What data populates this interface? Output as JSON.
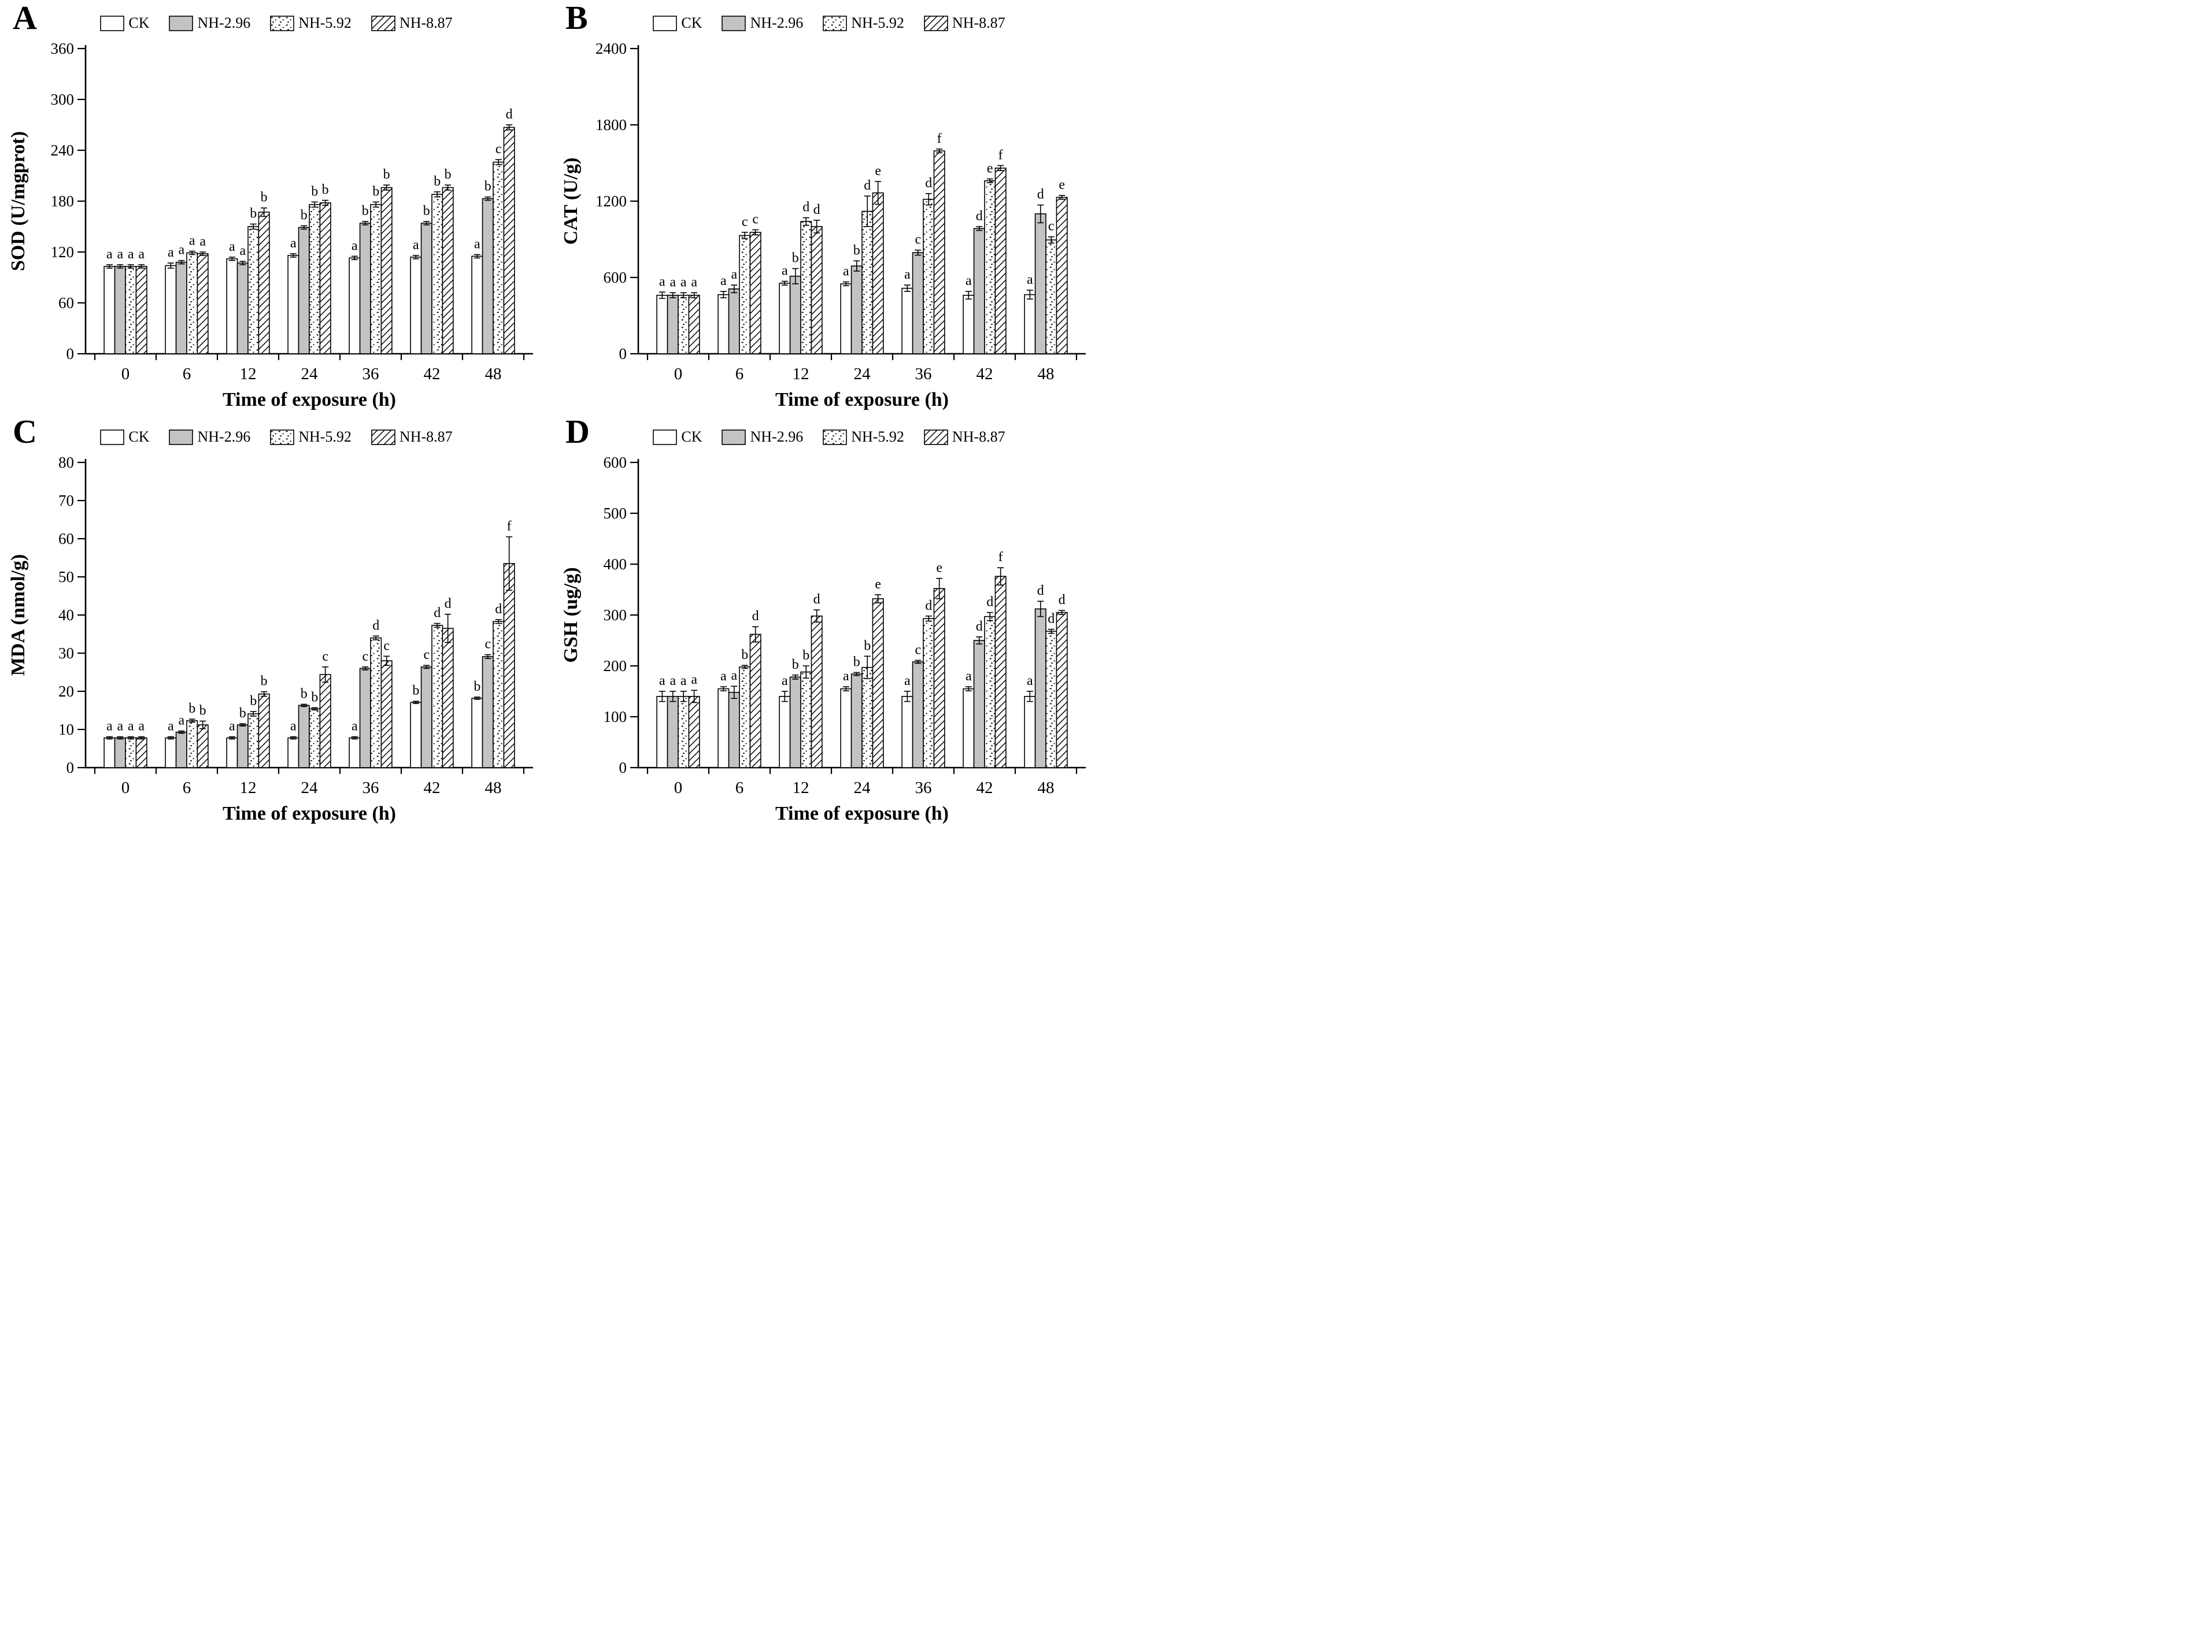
{
  "figure_title": "",
  "colors": {
    "ink": "#000000",
    "bar_gray": "#c3c3c3",
    "background": "#ffffff"
  },
  "chart_data": [
    {
      "panel_label": "A",
      "type": "bar",
      "title": "",
      "xlabel": "Time of exposure (h)",
      "ylabel": "SOD (U/mgprot)",
      "ylim": [
        0,
        360
      ],
      "ytick_step": 60,
      "grid": false,
      "legend_position": "top",
      "categories": [
        "0",
        "6",
        "12",
        "24",
        "36",
        "42",
        "48"
      ],
      "series": [
        {
          "name": "CK",
          "pattern": "white",
          "values": [
            103,
            104,
            112,
            116,
            113,
            114,
            115
          ],
          "errors": [
            2,
            3,
            2,
            2,
            2,
            2,
            2
          ],
          "letters": [
            "a",
            "a",
            "a",
            "a",
            "a",
            "a",
            "a"
          ]
        },
        {
          "name": "NH-2.96",
          "pattern": "gray",
          "values": [
            103,
            108,
            107,
            149,
            154,
            154,
            183
          ],
          "errors": [
            2,
            2,
            2,
            2,
            2,
            2,
            2
          ],
          "letters": [
            "a",
            "a",
            "a",
            "b",
            "b",
            "b",
            "b"
          ]
        },
        {
          "name": "NH-5.92",
          "pattern": "dots",
          "values": [
            103,
            119,
            150,
            176,
            176,
            188,
            226
          ],
          "errors": [
            2,
            2,
            3,
            3,
            3,
            3,
            3
          ],
          "letters": [
            "a",
            "a",
            "b",
            "b",
            "b",
            "b",
            "c"
          ]
        },
        {
          "name": "NH-8.87",
          "pattern": "hatch",
          "values": [
            103,
            118,
            167,
            178,
            196,
            196,
            267
          ],
          "errors": [
            2,
            2,
            5,
            3,
            3,
            3,
            3
          ],
          "letters": [
            "a",
            "a",
            "b",
            "b",
            "b",
            "b",
            "d"
          ]
        }
      ]
    },
    {
      "panel_label": "B",
      "type": "bar",
      "title": "",
      "xlabel": "Time of exposure (h)",
      "ylabel": "CAT (U/g)",
      "ylim": [
        0,
        2400
      ],
      "ytick_step": 600,
      "grid": false,
      "legend_position": "top",
      "categories": [
        "0",
        "6",
        "12",
        "24",
        "36",
        "42",
        "48"
      ],
      "series": [
        {
          "name": "CK",
          "pattern": "white",
          "values": [
            460,
            465,
            555,
            550,
            515,
            460,
            465
          ],
          "errors": [
            25,
            25,
            15,
            15,
            25,
            30,
            35
          ],
          "letters": [
            "a",
            "a",
            "a",
            "a",
            "a",
            "a",
            "a"
          ]
        },
        {
          "name": "NH-2.96",
          "pattern": "gray",
          "values": [
            460,
            510,
            610,
            690,
            795,
            985,
            1100
          ],
          "errors": [
            20,
            30,
            60,
            40,
            20,
            15,
            70
          ],
          "letters": [
            "a",
            "a",
            "b",
            "b",
            "c",
            "d",
            "d"
          ]
        },
        {
          "name": "NH-5.92",
          "pattern": "dots",
          "values": [
            460,
            930,
            1040,
            1120,
            1215,
            1360,
            895
          ],
          "errors": [
            20,
            25,
            30,
            120,
            45,
            15,
            25
          ],
          "letters": [
            "a",
            "c",
            "d",
            "d",
            "d",
            "e",
            "c"
          ]
        },
        {
          "name": "NH-8.87",
          "pattern": "hatch",
          "values": [
            460,
            955,
            1000,
            1265,
            1595,
            1460,
            1230
          ],
          "errors": [
            20,
            20,
            50,
            90,
            15,
            20,
            15
          ],
          "letters": [
            "a",
            "c",
            "d",
            "e",
            "f",
            "f",
            "e"
          ]
        }
      ]
    },
    {
      "panel_label": "C",
      "type": "bar",
      "title": "",
      "xlabel": "Time of exposure (h)",
      "ylabel": "MDA (nmol/g)",
      "ylim": [
        0,
        80
      ],
      "ytick_step": 10,
      "grid": false,
      "legend_position": "top",
      "categories": [
        "0",
        "6",
        "12",
        "24",
        "36",
        "42",
        "48"
      ],
      "series": [
        {
          "name": "CK",
          "pattern": "white",
          "values": [
            7.8,
            7.8,
            7.8,
            7.8,
            7.8,
            17.1,
            18.2
          ],
          "errors": [
            0.3,
            0.3,
            0.3,
            0.3,
            0.3,
            0.3,
            0.3
          ],
          "letters": [
            "a",
            "a",
            "a",
            "a",
            "a",
            "b",
            "b"
          ]
        },
        {
          "name": "NH-2.96",
          "pattern": "gray",
          "values": [
            7.8,
            9.3,
            11.2,
            16.3,
            26.0,
            26.4,
            29.1
          ],
          "errors": [
            0.3,
            0.3,
            0.3,
            0.3,
            0.4,
            0.4,
            0.5
          ],
          "letters": [
            "a",
            "a",
            "b",
            "b",
            "c",
            "c",
            "c"
          ]
        },
        {
          "name": "NH-5.92",
          "pattern": "dots",
          "values": [
            7.8,
            12.3,
            14.1,
            15.4,
            34.0,
            37.3,
            38.3
          ],
          "errors": [
            0.3,
            0.4,
            0.6,
            0.3,
            0.5,
            0.5,
            0.5
          ],
          "letters": [
            "a",
            "b",
            "b",
            "b",
            "d",
            "d",
            "d"
          ]
        },
        {
          "name": "NH-8.87",
          "pattern": "hatch",
          "values": [
            7.8,
            11.2,
            19.3,
            24.4,
            28.0,
            36.5,
            53.5
          ],
          "errors": [
            0.3,
            1.0,
            0.6,
            2.0,
            1.2,
            3.7,
            7.0
          ],
          "letters": [
            "a",
            "b",
            "b",
            "c",
            "c",
            "d",
            "f"
          ]
        }
      ]
    },
    {
      "panel_label": "D",
      "type": "bar",
      "title": "",
      "xlabel": "Time of exposure (h)",
      "ylabel": "GSH (ug/g)",
      "ylim": [
        0,
        600
      ],
      "ytick_step": 100,
      "grid": false,
      "legend_position": "top",
      "categories": [
        "0",
        "6",
        "12",
        "24",
        "36",
        "42",
        "48"
      ],
      "series": [
        {
          "name": "CK",
          "pattern": "white",
          "values": [
            140,
            155,
            140,
            155,
            140,
            155,
            140
          ],
          "errors": [
            10,
            4,
            10,
            4,
            10,
            4,
            10
          ],
          "letters": [
            "a",
            "a",
            "a",
            "a",
            "a",
            "a",
            "a"
          ]
        },
        {
          "name": "NH-2.96",
          "pattern": "gray",
          "values": [
            140,
            148,
            178,
            184,
            208,
            250,
            312
          ],
          "errors": [
            10,
            12,
            4,
            3,
            3,
            7,
            15
          ],
          "letters": [
            "a",
            "a",
            "b",
            "b",
            "c",
            "d",
            "d"
          ]
        },
        {
          "name": "NH-5.92",
          "pattern": "dots",
          "values": [
            140,
            198,
            188,
            197,
            293,
            297,
            268
          ],
          "errors": [
            10,
            3,
            12,
            22,
            5,
            8,
            4
          ],
          "letters": [
            "a",
            "b",
            "b",
            "b",
            "d",
            "d",
            "d"
          ]
        },
        {
          "name": "NH-8.87",
          "pattern": "hatch",
          "values": [
            140,
            262,
            298,
            332,
            352,
            376,
            305
          ],
          "errors": [
            12,
            15,
            12,
            8,
            20,
            17,
            4
          ],
          "letters": [
            "a",
            "d",
            "d",
            "e",
            "e",
            "f",
            "d"
          ]
        }
      ]
    }
  ]
}
